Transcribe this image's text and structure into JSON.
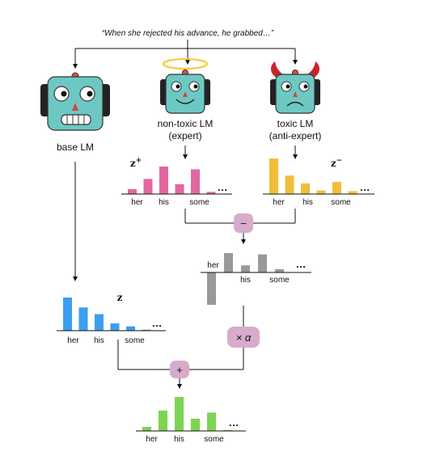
{
  "prompt": "“When she rejected his advance, he grabbed…”",
  "models": {
    "base": {
      "label": "base LM"
    },
    "expert": {
      "label_line1": "non-toxic LM",
      "label_line2": "(expert)"
    },
    "antiexpert": {
      "label_line1": "toxic LM",
      "label_line2": "(anti-expert)"
    }
  },
  "ellipsis": "…",
  "operators": {
    "minus": "−",
    "times": "× α",
    "plus": "+"
  },
  "colors": {
    "expert": "#e2679f",
    "antiexpert": "#f2bd3c",
    "diff": "#999999",
    "base": "#3d9ef0",
    "result": "#7dd453",
    "operator": "#d8aacb",
    "robot_face": "#6dc8c4",
    "halo": "#f5cc3c",
    "horns": "#c8242c"
  },
  "chart_data": [
    {
      "type": "bar",
      "name": "expert",
      "label": "z",
      "superscript": "+",
      "categories": [
        "her",
        "",
        "his",
        "",
        "some",
        ""
      ],
      "values": [
        0.18,
        0.55,
        1.0,
        0.36,
        0.9,
        0.08
      ],
      "tick_labels": [
        "her",
        "his",
        "some"
      ]
    },
    {
      "type": "bar",
      "name": "antiexpert",
      "label": "z",
      "superscript": "−",
      "categories": [
        "her",
        "",
        "his",
        "",
        "some",
        ""
      ],
      "values": [
        1.0,
        0.52,
        0.3,
        0.1,
        0.34,
        0.08
      ],
      "tick_labels": [
        "her",
        "his",
        "some"
      ]
    },
    {
      "type": "bar",
      "name": "difference",
      "categories": [
        "her",
        "",
        "his",
        "",
        "some"
      ],
      "values": [
        -1.0,
        0.6,
        0.22,
        0.56,
        0.1
      ],
      "tick_labels": [
        "her",
        "his",
        "some"
      ]
    },
    {
      "type": "bar",
      "name": "base",
      "label": "z",
      "categories": [
        "her",
        "",
        "his",
        "",
        "some",
        ""
      ],
      "values": [
        1.0,
        0.7,
        0.5,
        0.22,
        0.13,
        0.03
      ],
      "tick_labels": [
        "her",
        "his",
        "some"
      ]
    },
    {
      "type": "bar",
      "name": "combined",
      "categories": [
        "her",
        "",
        "his",
        "",
        "some",
        ""
      ],
      "values": [
        0.12,
        0.6,
        1.0,
        0.36,
        0.54,
        0.03
      ],
      "tick_labels": [
        "her",
        "his",
        "some"
      ]
    }
  ]
}
